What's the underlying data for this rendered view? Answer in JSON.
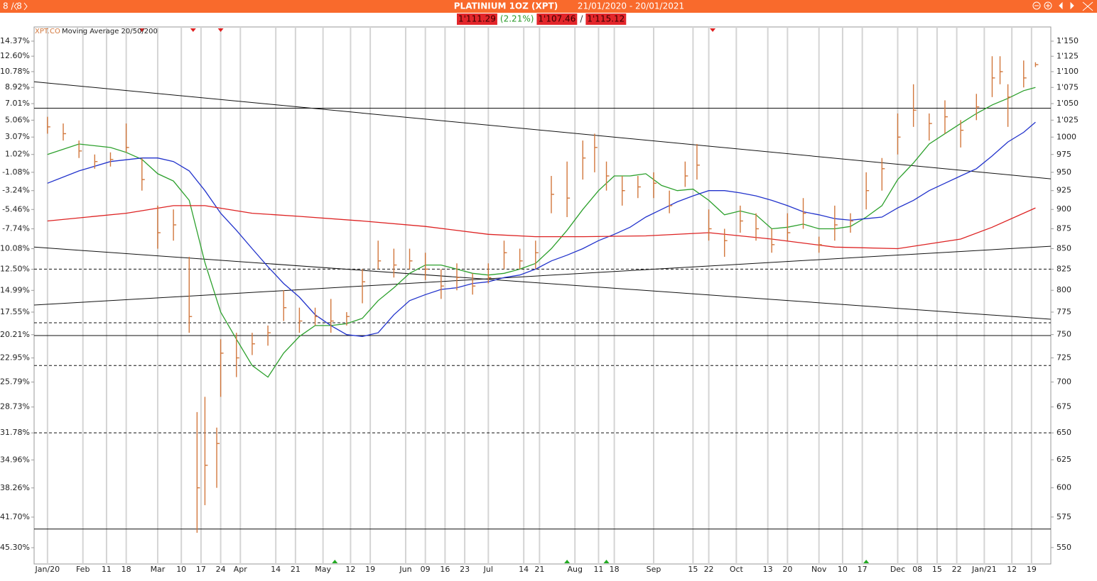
{
  "header": {
    "counter": "8 / 8",
    "title": "PLATINIUM 1OZ (XPT)",
    "period": "21/01/2020 - 20/01/2021"
  },
  "quote": {
    "last": "1'111.29",
    "change": "(2.21%)",
    "low": "1'107.46",
    "separator": "/",
    "high": "1'115.12"
  },
  "chart_data": {
    "type": "hlc",
    "symbol": "XPT.CO",
    "indicator": "Moving Average 20/50/200",
    "log_scale": true,
    "grid": true,
    "bar_color": "#d2773c",
    "xlim": [
      -3.4,
      254.9
    ],
    "xticks": [
      {
        "value": 0,
        "label": "Jan/20"
      },
      {
        "value": 9,
        "label": "Feb"
      },
      {
        "value": 15,
        "label": "11"
      },
      {
        "value": 20,
        "label": "18"
      },
      {
        "value": 28,
        "label": "Mar"
      },
      {
        "value": 34,
        "label": "10"
      },
      {
        "value": 39,
        "label": "17"
      },
      {
        "value": 44,
        "label": "24"
      },
      {
        "value": 49,
        "label": "Apr"
      },
      {
        "value": 58,
        "label": "14"
      },
      {
        "value": 63,
        "label": "21"
      },
      {
        "value": 70,
        "label": "May"
      },
      {
        "value": 77,
        "label": "12"
      },
      {
        "value": 82,
        "label": "19"
      },
      {
        "value": 91,
        "label": "Jun"
      },
      {
        "value": 96,
        "label": "09"
      },
      {
        "value": 101,
        "label": "16"
      },
      {
        "value": 106,
        "label": "23"
      },
      {
        "value": 112,
        "label": "Jul"
      },
      {
        "value": 121,
        "label": "14"
      },
      {
        "value": 125,
        "label": "21"
      },
      {
        "value": 134,
        "label": "Aug"
      },
      {
        "value": 140,
        "label": "11"
      },
      {
        "value": 144,
        "label": "18"
      },
      {
        "value": 154,
        "label": "Sep"
      },
      {
        "value": 164,
        "label": "15"
      },
      {
        "value": 168,
        "label": "22"
      },
      {
        "value": 175,
        "label": "Oct"
      },
      {
        "value": 183,
        "label": "13"
      },
      {
        "value": 188,
        "label": "20"
      },
      {
        "value": 196,
        "label": "Nov"
      },
      {
        "value": 202,
        "label": "10"
      },
      {
        "value": 207,
        "label": "17"
      },
      {
        "value": 216,
        "label": "Dec"
      },
      {
        "value": 221,
        "label": "08"
      },
      {
        "value": 226,
        "label": "15"
      },
      {
        "value": 231,
        "label": "22"
      },
      {
        "value": 238,
        "label": "Jan/21"
      },
      {
        "value": 245,
        "label": "12"
      },
      {
        "value": 250,
        "label": "19"
      }
    ],
    "ylim": [
      537,
      1174
    ],
    "yticks": [
      {
        "value": 1150,
        "label": "1'150"
      },
      {
        "value": 1125,
        "label": "1'125"
      },
      {
        "value": 1100,
        "label": "1'100"
      },
      {
        "value": 1075,
        "label": "1'075"
      },
      {
        "value": 1050,
        "label": "1'050"
      },
      {
        "value": 1025,
        "label": "1'025"
      },
      1000,
      975,
      950,
      925,
      900,
      875,
      850,
      825,
      800,
      775,
      750,
      725,
      700,
      675,
      650,
      625,
      600,
      575,
      550
    ],
    "y2lim": [
      -47.22,
      16.04
    ],
    "y2ticks": [
      {
        "value": 14.37,
        "label": "14.37%"
      },
      {
        "value": 12.6,
        "label": "12.60%"
      },
      {
        "value": 10.78,
        "label": "10.78%"
      },
      {
        "value": 8.92,
        "label": "8.92%"
      },
      {
        "value": 7.01,
        "label": "7.01%"
      },
      {
        "value": 5.06,
        "label": "5.06%"
      },
      {
        "value": 3.07,
        "label": "3.07%"
      },
      {
        "value": 1.02,
        "label": "1.02%"
      },
      {
        "value": -1.08,
        "label": "-1.08%"
      },
      {
        "value": -3.24,
        "label": "-3.24%"
      },
      {
        "value": -5.46,
        "label": "-5.46%"
      },
      {
        "value": -7.74,
        "label": "-7.74%"
      },
      {
        "value": -10.08,
        "label": "-10.08%"
      },
      {
        "value": -12.5,
        "label": "-12.50%"
      },
      {
        "value": -14.99,
        "label": "-14.99%"
      },
      {
        "value": -17.55,
        "label": "-17.55%"
      },
      {
        "value": -20.21,
        "label": "-20.21%"
      },
      {
        "value": -22.95,
        "label": "-22.95%"
      },
      {
        "value": -25.79,
        "label": "-25.79%"
      },
      {
        "value": -28.73,
        "label": "-28.73%"
      },
      {
        "value": -31.78,
        "label": "-31.78%"
      },
      {
        "value": -34.96,
        "label": "-34.96%"
      },
      {
        "value": -38.26,
        "label": "-38.26%"
      },
      {
        "value": -41.7,
        "label": "-41.70%"
      },
      {
        "value": -45.3,
        "label": "-45.30%"
      }
    ],
    "x": [
      0,
      4,
      8,
      12,
      16,
      20,
      24,
      28,
      32,
      36,
      38,
      40,
      43,
      44,
      48,
      52,
      56,
      60,
      64,
      68,
      72,
      76,
      80,
      84,
      88,
      92,
      96,
      100,
      104,
      108,
      112,
      116,
      120,
      124,
      128,
      132,
      136,
      139,
      142,
      146,
      150,
      154,
      158,
      162,
      165,
      168,
      172,
      176,
      180,
      184,
      188,
      192,
      196,
      200,
      204,
      208,
      212,
      216,
      220,
      224,
      228,
      232,
      236,
      240,
      242,
      244,
      248,
      251
    ],
    "high": [
      1030,
      1020,
      995,
      975,
      978,
      1020,
      970,
      905,
      900,
      840,
      670,
      685,
      655,
      745,
      752,
      752,
      760,
      800,
      780,
      780,
      790,
      775,
      825,
      860,
      850,
      850,
      845,
      825,
      832,
      820,
      832,
      860,
      850,
      860,
      945,
      965,
      995,
      1005,
      965,
      945,
      945,
      950,
      925,
      965,
      990,
      900,
      875,
      905,
      895,
      875,
      895,
      915,
      865,
      905,
      895,
      950,
      970,
      1035,
      1080,
      1035,
      1055,
      1025,
      1065,
      1125,
      1125,
      1080,
      1118,
      1115.12
    ],
    "low": [
      1005,
      995,
      970,
      955,
      958,
      978,
      925,
      850,
      860,
      752,
      562,
      585,
      600,
      685,
      705,
      728,
      738,
      765,
      752,
      760,
      752,
      760,
      785,
      825,
      815,
      825,
      812,
      790,
      800,
      795,
      808,
      825,
      825,
      825,
      895,
      890,
      940,
      950,
      925,
      905,
      915,
      915,
      895,
      930,
      940,
      860,
      840,
      870,
      860,
      845,
      860,
      875,
      845,
      860,
      870,
      900,
      925,
      975,
      1015,
      995,
      1005,
      985,
      1025,
      1060,
      1080,
      1015,
      1075,
      1107.46
    ],
    "close": [
      1015,
      1005,
      980,
      965,
      968,
      985,
      940,
      870,
      880,
      770,
      600,
      620,
      640,
      730,
      725,
      740,
      752,
      780,
      765,
      770,
      765,
      770,
      810,
      835,
      830,
      835,
      825,
      805,
      815,
      805,
      815,
      845,
      835,
      845,
      920,
      915,
      970,
      985,
      945,
      925,
      930,
      935,
      905,
      945,
      960,
      875,
      860,
      885,
      875,
      855,
      870,
      895,
      855,
      880,
      885,
      925,
      955,
      1000,
      1040,
      1020,
      1030,
      1010,
      1045,
      1090,
      1100,
      1060,
      1090,
      1111.29
    ],
    "lines": [
      {
        "color": "#2ca02c",
        "x": [
          0,
          8,
          16,
          20,
          24,
          28,
          32,
          36,
          40,
          44,
          48,
          52,
          56,
          60,
          64,
          68,
          72,
          76,
          80,
          84,
          88,
          92,
          96,
          100,
          104,
          108,
          112,
          116,
          120,
          124,
          128,
          132,
          136,
          140,
          144,
          148,
          152,
          156,
          160,
          164,
          168,
          172,
          176,
          180,
          184,
          188,
          192,
          196,
          200,
          204,
          208,
          212,
          216,
          220,
          224,
          228,
          232,
          236,
          240,
          244,
          248,
          251
        ],
        "values": [
          975,
          990,
          985,
          978,
          968,
          948,
          938,
          912,
          833,
          775,
          745,
          717,
          705,
          730,
          748,
          760,
          760,
          762,
          768,
          788,
          803,
          820,
          830,
          830,
          825,
          820,
          818,
          820,
          825,
          832,
          850,
          873,
          900,
          925,
          945,
          945,
          948,
          932,
          925,
          927,
          912,
          893,
          898,
          893,
          875,
          877,
          881,
          875,
          875,
          878,
          890,
          905,
          940,
          963,
          990,
          1005,
          1020,
          1035,
          1048,
          1058,
          1070,
          1075
        ]
      },
      {
        "color": "#2233cc",
        "x": [
          0,
          8,
          16,
          24,
          28,
          32,
          36,
          40,
          44,
          48,
          52,
          56,
          60,
          64,
          68,
          72,
          76,
          80,
          84,
          88,
          92,
          96,
          100,
          104,
          108,
          112,
          116,
          120,
          124,
          128,
          132,
          136,
          140,
          144,
          148,
          152,
          156,
          160,
          164,
          168,
          172,
          176,
          180,
          184,
          188,
          192,
          196,
          200,
          204,
          208,
          212,
          216,
          220,
          224,
          228,
          232,
          236,
          240,
          244,
          248,
          251
        ],
        "values": [
          935,
          952,
          965,
          970,
          970,
          965,
          952,
          925,
          895,
          873,
          850,
          828,
          808,
          792,
          772,
          760,
          750,
          748,
          752,
          772,
          788,
          795,
          801,
          803,
          808,
          810,
          815,
          818,
          825,
          835,
          842,
          850,
          860,
          868,
          877,
          890,
          900,
          910,
          918,
          925,
          925,
          922,
          918,
          912,
          905,
          897,
          893,
          888,
          886,
          888,
          890,
          902,
          912,
          925,
          935,
          945,
          955,
          973,
          993,
          1007,
          1022
        ]
      },
      {
        "color": "#dd2222",
        "x": [
          0,
          20,
          32,
          40,
          52,
          64,
          80,
          96,
          112,
          124,
          136,
          152,
          168,
          184,
          200,
          216,
          232,
          240,
          251
        ],
        "values": [
          885,
          895,
          905,
          905,
          895,
          891,
          885,
          878,
          868,
          865,
          865,
          866,
          870,
          862,
          852,
          850,
          862,
          877,
          902
        ]
      }
    ],
    "levels": [
      {
        "value": 1043,
        "style": "solid"
      },
      {
        "value": 825,
        "style": "dashed"
      },
      {
        "value": 763,
        "style": "dashed"
      },
      {
        "value": 749,
        "style": "solid"
      },
      {
        "value": 717,
        "style": "dashed"
      },
      {
        "value": 650,
        "style": "dashed"
      },
      {
        "value": 565,
        "style": "solid"
      }
    ],
    "trend_lines": [
      [
        -3.4,
        1084,
        254.9,
        941
      ],
      [
        -3.4,
        852,
        254.9,
        767
      ],
      [
        -3.4,
        783,
        254.9,
        853
      ]
    ],
    "signals_down": [
      24,
      37,
      44,
      169
    ],
    "signals_up": [
      73,
      132,
      142,
      208
    ]
  }
}
